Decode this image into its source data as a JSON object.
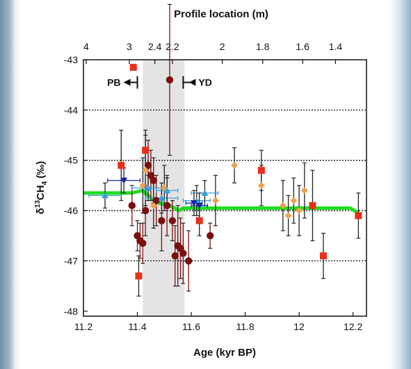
{
  "chart_data": {
    "type": "scatter",
    "xlabel": "Age (kyr BP)",
    "ylabel_main": "δ",
    "ylabel_sup": "13",
    "ylabel_rest": "CH",
    "ylabel_sub": "4",
    "ylabel_unit": " (‰)",
    "top_xlabel": "Profile location (m)",
    "xlim": [
      11.2,
      12.25
    ],
    "ylim": [
      -48.1,
      -43
    ],
    "x_ticks": [
      11.2,
      11.4,
      11.6,
      11.8,
      12,
      12.2
    ],
    "x_tick_labels": [
      "11.2",
      "11.4",
      "11.6",
      "11.8",
      "12",
      "12.2"
    ],
    "y_ticks": [
      -48,
      -47,
      -46,
      -45,
      -44,
      -43
    ],
    "y_tick_labels": [
      "-48",
      "-47",
      "-46",
      "-45",
      "-44",
      "-43"
    ],
    "top_ticks": [
      {
        "label": "4",
        "age": 11.21
      },
      {
        "label": "3",
        "age": 11.37
      },
      {
        "label": "2.4",
        "age": 11.465
      },
      {
        "label": "2.2",
        "age": 11.53
      },
      {
        "label": "2",
        "age": 11.715
      },
      {
        "label": "1.8",
        "age": 11.865
      },
      {
        "label": "1.6",
        "age": 12.013
      },
      {
        "label": "1.4",
        "age": 12.135
      }
    ],
    "grid_y": [
      -47,
      -46,
      -45,
      -44
    ],
    "shaded_x": [
      11.42,
      11.575
    ],
    "annotations": {
      "pb": {
        "label": "PB",
        "age": 11.4,
        "y": -43.45
      },
      "yd": {
        "label": "YD",
        "age": 11.57,
        "y": -43.45
      }
    },
    "colors": {
      "dark_red": "#7a1010",
      "red_square": "#e8301a",
      "orange": "#f0a050",
      "light_blue": "#3b9ee0",
      "dark_blue": "#1428a0",
      "green_line": "#22dd22",
      "shade": "#e4e4e4",
      "error_bar": "#222222"
    },
    "series": [
      {
        "marker": "circle",
        "color": "dark_red",
        "points": [
          [
            11.38,
            -45.9,
            0.4
          ],
          [
            11.4,
            -46.5,
            0.3
          ],
          [
            11.41,
            -46.6,
            0.35
          ],
          [
            11.42,
            -46.65,
            0.4
          ],
          [
            11.43,
            -46.0,
            0.5
          ],
          [
            11.44,
            -45.1,
            0.5
          ],
          [
            11.45,
            -45.3,
            0.5
          ],
          [
            11.46,
            -45.4,
            0.45
          ],
          [
            11.47,
            -45.8,
            0.5
          ],
          [
            11.49,
            -46.2,
            0.6
          ],
          [
            11.51,
            -45.9,
            0.6
          ],
          [
            11.52,
            -43.4,
            1.5
          ],
          [
            11.53,
            -46.2,
            0.4
          ],
          [
            11.54,
            -46.9,
            0.6
          ],
          [
            11.55,
            -46.7,
            0.8
          ],
          [
            11.56,
            -46.75,
            0.6
          ],
          [
            11.57,
            -46.85,
            0.6
          ],
          [
            11.59,
            -47.0,
            0.6
          ],
          [
            11.67,
            -46.5,
            0.25
          ]
        ]
      },
      {
        "marker": "square",
        "color": "red_square",
        "points": [
          [
            11.34,
            -45.1,
            0.7
          ],
          [
            11.385,
            -43.15,
            0.0
          ],
          [
            11.405,
            -47.3,
            0.4
          ],
          [
            11.43,
            -44.8,
            0.4
          ],
          [
            11.63,
            -46.2,
            0.3
          ],
          [
            11.86,
            -45.2,
            0.4
          ],
          [
            12.05,
            -45.9,
            0.7
          ],
          [
            12.09,
            -46.9,
            0.45
          ],
          [
            12.22,
            -46.1,
            0.45
          ]
        ]
      },
      {
        "marker": "diamond",
        "color": "orange",
        "points": [
          [
            11.42,
            -45.5,
            0.55
          ],
          [
            11.43,
            -45.2,
            0.7
          ],
          [
            11.46,
            -45.9,
            0.45
          ],
          [
            11.5,
            -45.55,
            0.45
          ],
          [
            11.69,
            -45.8,
            0.5
          ],
          [
            11.76,
            -45.1,
            0.35
          ],
          [
            11.86,
            -45.5,
            0.4
          ],
          [
            11.94,
            -45.9,
            0.5
          ],
          [
            11.96,
            -46.1,
            0.4
          ],
          [
            11.98,
            -45.8,
            0.45
          ],
          [
            12.0,
            -46.0,
            0.5
          ],
          [
            12.02,
            -45.6,
            0.55
          ]
        ]
      },
      {
        "marker": "triangle-up",
        "color": "light_blue",
        "points": [
          [
            11.28,
            -45.7,
            0.25,
            0.06
          ],
          [
            11.44,
            -45.55,
            0.25,
            0.06
          ],
          [
            11.49,
            -45.75,
            0.3,
            0.06
          ],
          [
            11.51,
            -45.6,
            0.25,
            0.04
          ],
          [
            11.62,
            -45.8,
            0.3,
            0.05
          ],
          [
            11.65,
            -45.65,
            0.25,
            0.05
          ]
        ]
      },
      {
        "marker": "triangle-down",
        "color": "dark_blue",
        "points": [
          [
            11.35,
            -45.4,
            0.25,
            0.06
          ],
          [
            11.61,
            -45.85,
            0.25,
            0.03
          ],
          [
            11.63,
            -45.9,
            0.25,
            0.03
          ]
        ]
      }
    ],
    "green_line": [
      [
        11.2,
        -45.65
      ],
      [
        11.38,
        -45.65
      ],
      [
        11.42,
        -45.6
      ],
      [
        11.45,
        -45.75
      ],
      [
        11.48,
        -45.85
      ],
      [
        11.52,
        -45.9
      ],
      [
        11.555,
        -46.0
      ],
      [
        11.57,
        -45.95
      ],
      [
        11.65,
        -45.95
      ],
      [
        12.19,
        -45.95
      ],
      [
        12.22,
        -46.05
      ]
    ]
  }
}
